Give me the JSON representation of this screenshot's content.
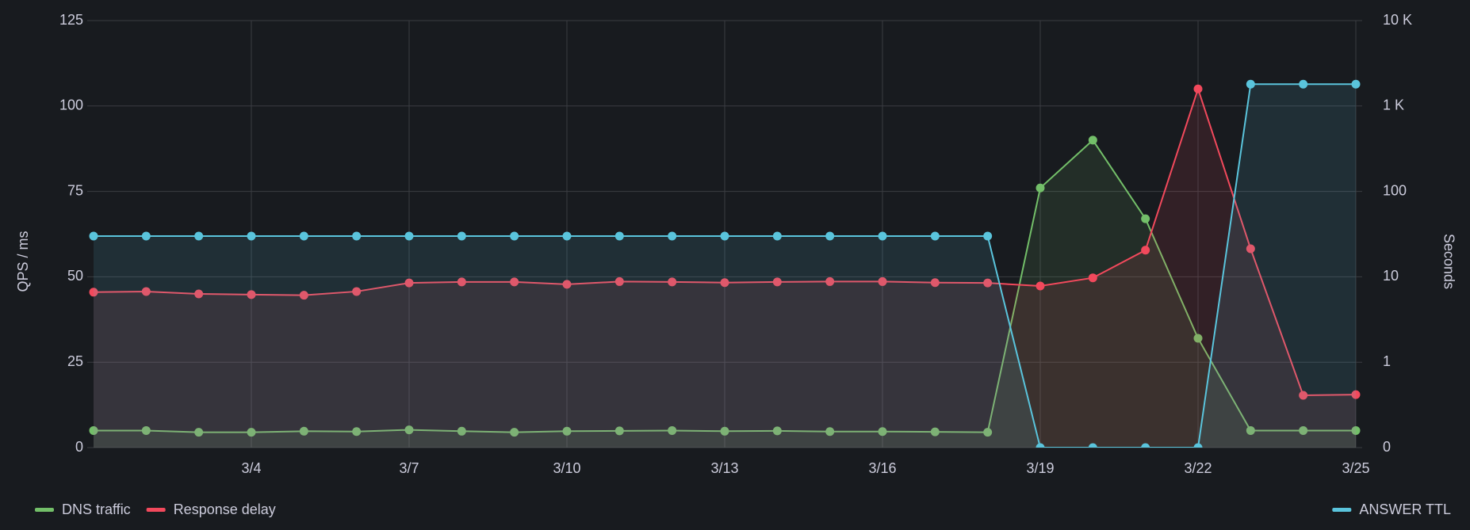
{
  "chart_data": {
    "type": "line",
    "categories": [
      null,
      null,
      null,
      "3/4",
      null,
      null,
      "3/7",
      null,
      null,
      "3/10",
      null,
      null,
      "3/13",
      null,
      null,
      "3/16",
      null,
      null,
      "3/19",
      null,
      null,
      "3/22",
      null,
      null,
      "3/25"
    ],
    "ylabel": "QPS / ms",
    "y2label": "Seconds",
    "ylim": [
      0,
      125
    ],
    "yticks": [
      0,
      25,
      50,
      75,
      100,
      125
    ],
    "y2lim": [
      0,
      10000
    ],
    "y2log": true,
    "y2ticks": [
      0,
      1,
      10,
      100,
      {
        "value": 1000,
        "label": "1 K"
      },
      {
        "value": 10000,
        "label": "10 K"
      }
    ],
    "grid": true,
    "series": [
      {
        "name": "DNS traffic",
        "color": "#73bf69",
        "axis": "y",
        "values": [
          5,
          5,
          4.5,
          4.5,
          4.8,
          4.7,
          5.2,
          4.8,
          4.5,
          4.8,
          4.9,
          5,
          4.8,
          4.9,
          4.7,
          4.7,
          4.6,
          4.5,
          76,
          90,
          67,
          32,
          5,
          5,
          5
        ]
      },
      {
        "name": "Response delay",
        "color": "#f2495c",
        "axis": "y",
        "values": [
          45.5,
          45.7,
          45,
          44.8,
          44.6,
          45.7,
          48.2,
          48.5,
          48.5,
          47.8,
          48.6,
          48.5,
          48.3,
          48.5,
          48.6,
          48.6,
          48.3,
          48.2,
          47.3,
          49.7,
          57.8,
          105,
          58.2,
          15.3,
          15.5
        ]
      },
      {
        "name": "ANSWER TTL",
        "color": "#5ac4dc",
        "axis": "y2",
        "values": [
          30,
          30,
          30,
          30,
          30,
          30,
          30,
          30,
          30,
          30,
          30,
          30,
          30,
          30,
          30,
          30,
          30,
          30,
          0,
          0,
          0,
          0,
          1800,
          1800,
          1800
        ]
      }
    ]
  }
}
